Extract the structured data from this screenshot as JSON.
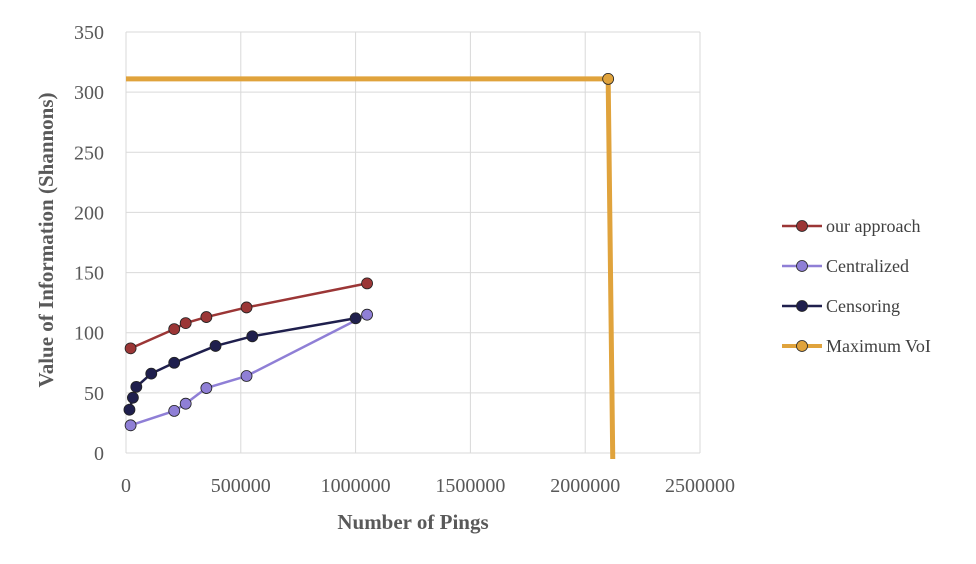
{
  "chart_data": {
    "type": "scatter",
    "title": "",
    "xlabel": "Number of Pings",
    "ylabel": "Value of Information (Shannons)",
    "xlim": [
      0,
      2500000
    ],
    "ylim": [
      0,
      350
    ],
    "x_ticks": [
      "0",
      "500000",
      "1000000",
      "1500000",
      "2000000",
      "2500000"
    ],
    "y_ticks": [
      "0",
      "50",
      "100",
      "150",
      "200",
      "250",
      "300",
      "350"
    ],
    "x_tick_values": [
      0,
      500000,
      1000000,
      1500000,
      2000000,
      2500000
    ],
    "y_tick_values": [
      0,
      50,
      100,
      150,
      200,
      250,
      300,
      350
    ],
    "grid": "vertical and horizontal major gridlines",
    "legend_position": "right",
    "series": [
      {
        "name": "our approach",
        "color": "#9b3636",
        "points": [
          [
            20000,
            87
          ],
          [
            210000,
            103
          ],
          [
            260000,
            108
          ],
          [
            350000,
            113
          ],
          [
            525000,
            121
          ],
          [
            1050000,
            141
          ]
        ]
      },
      {
        "name": "Centralized",
        "color": "#8f7fd6",
        "points": [
          [
            20000,
            23
          ],
          [
            210000,
            35
          ],
          [
            260000,
            41
          ],
          [
            350000,
            54
          ],
          [
            525000,
            64
          ],
          [
            1050000,
            115
          ]
        ]
      },
      {
        "name": "Censoring",
        "color": "#1f1f4d",
        "points": [
          [
            15000,
            36
          ],
          [
            30000,
            46
          ],
          [
            45000,
            55
          ],
          [
            110000,
            66
          ],
          [
            210000,
            75
          ],
          [
            390000,
            89
          ],
          [
            550000,
            97
          ],
          [
            1000000,
            112
          ]
        ]
      },
      {
        "name": "Maximum VoI",
        "color": "#e0a33c",
        "points": [
          [
            0,
            311
          ],
          [
            2100000,
            311
          ],
          [
            2120000,
            -5
          ]
        ]
      }
    ]
  }
}
